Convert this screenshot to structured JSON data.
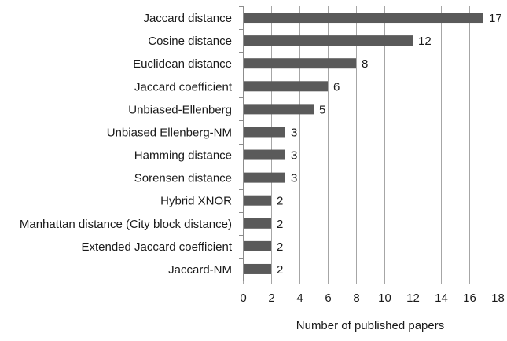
{
  "chart_data": {
    "type": "bar",
    "orientation": "horizontal",
    "title": "",
    "xlabel": "Number of published papers",
    "ylabel": "",
    "xlim": [
      0,
      18
    ],
    "x_ticks": [
      "0",
      "2",
      "4",
      "6",
      "8",
      "10",
      "12",
      "14",
      "16",
      "18"
    ],
    "grid": "vertical",
    "categories": [
      "Jaccard distance",
      "Cosine distance",
      "Euclidean distance",
      "Jaccard coefficient",
      "Unbiased-Ellenberg",
      "Unbiased Ellenberg-NM",
      "Hamming distance",
      "Sorensen distance",
      "Hybrid XNOR",
      "Manhattan distance (City block distance)",
      "Extended Jaccard coefficient",
      "Jaccard-NM"
    ],
    "values": [
      17,
      12,
      8,
      6,
      5,
      3,
      3,
      3,
      2,
      2,
      2,
      2
    ],
    "data_labels": [
      "17",
      "12",
      "8",
      "6",
      "5",
      "3",
      "3",
      "3",
      "2",
      "2",
      "2",
      "2"
    ],
    "bar_color": "#5a5a5a",
    "grid_color": "#a6a6a6"
  }
}
